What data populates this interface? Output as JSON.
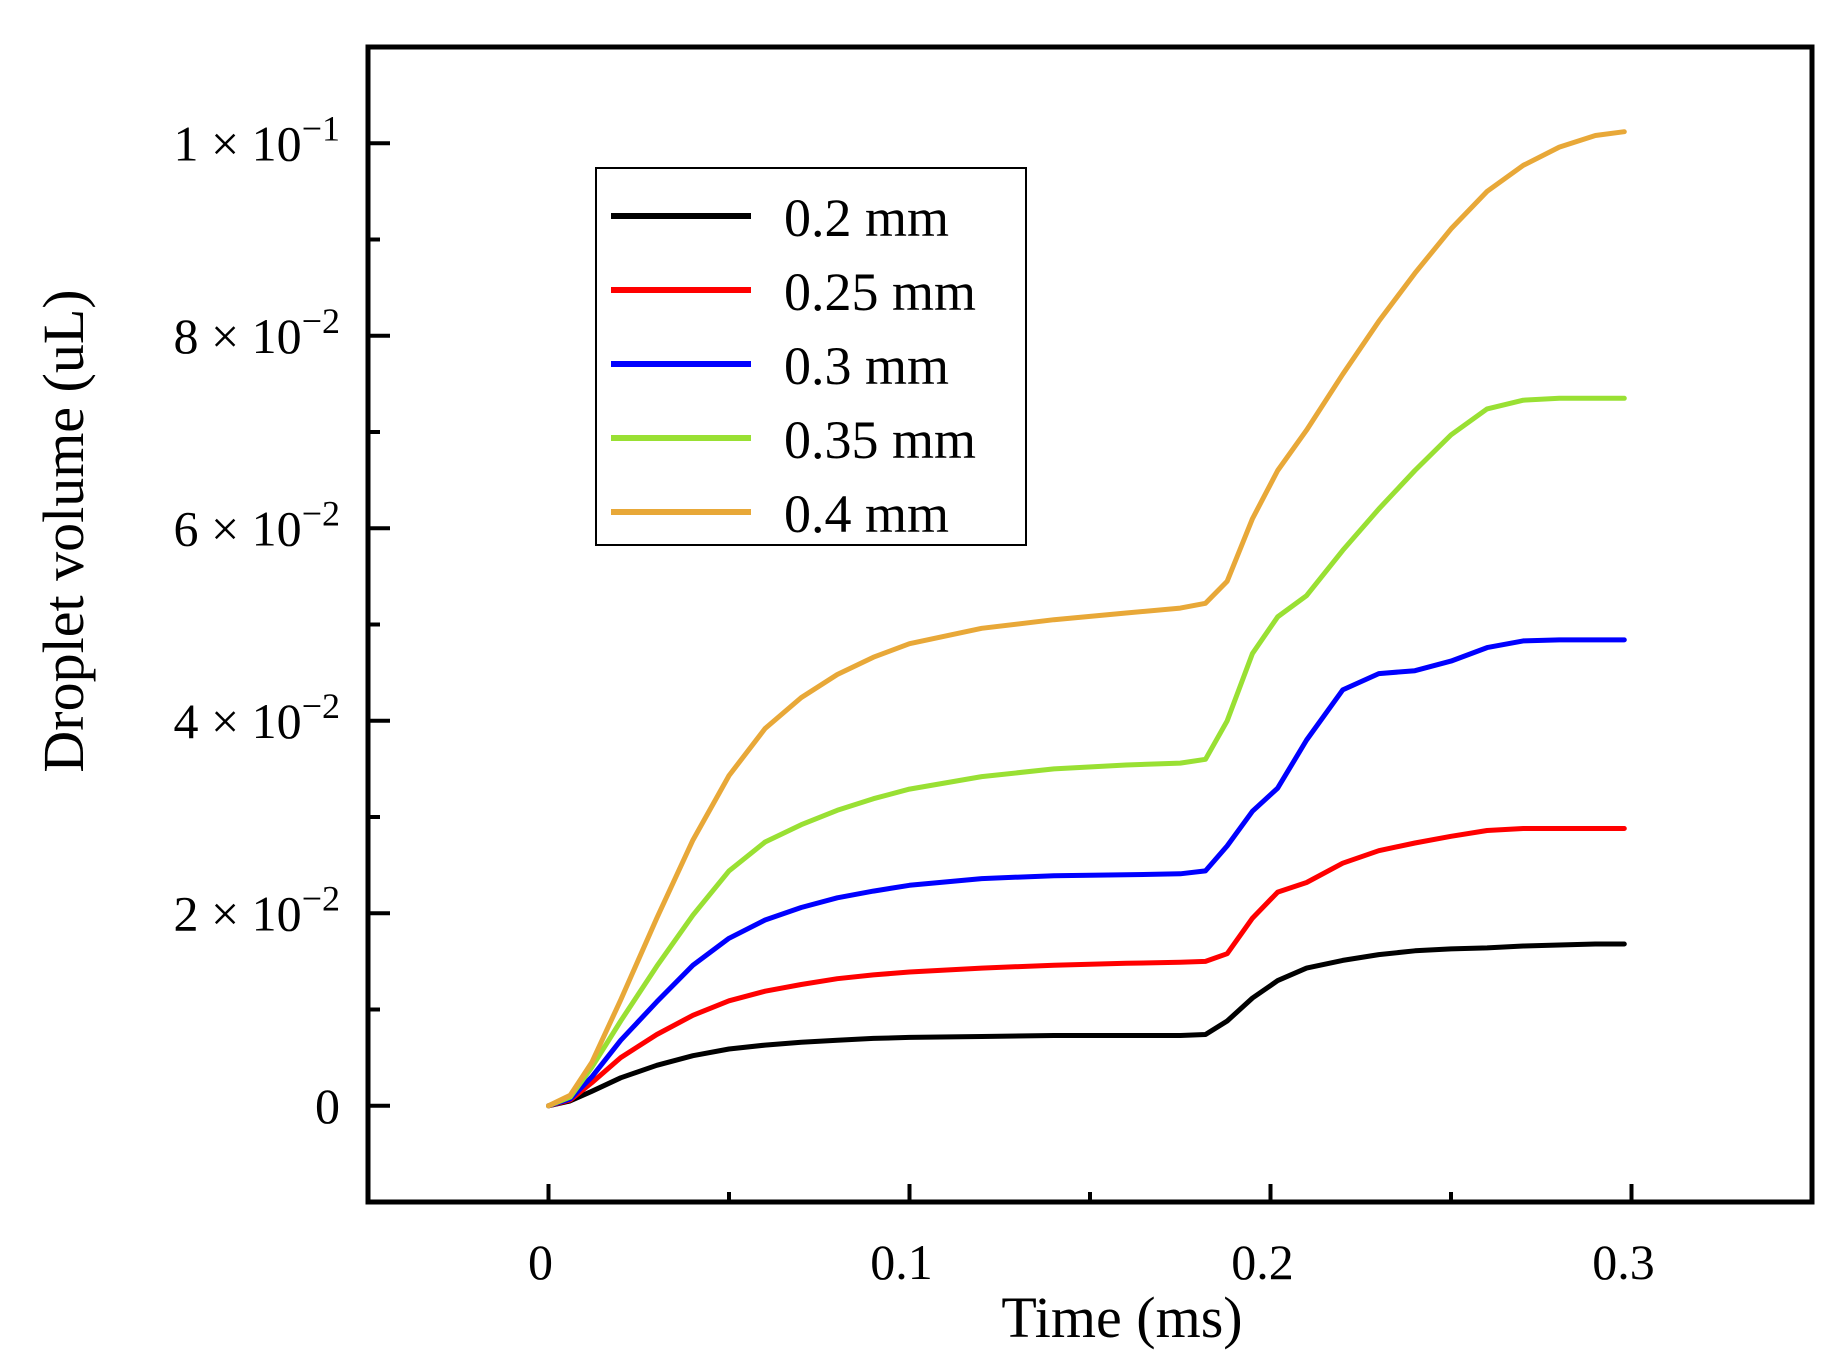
{
  "chart_data": {
    "type": "line",
    "title": "",
    "xlabel": "Time (ms)",
    "ylabel": "Droplet volume (uL)",
    "xlim": [
      -0.05,
      0.35
    ],
    "ylim": [
      -0.01,
      0.11
    ],
    "x_ticks": [
      {
        "value": 0,
        "label": "0"
      },
      {
        "value": 0.1,
        "label": "0.1"
      },
      {
        "value": 0.2,
        "label": "0.2"
      },
      {
        "value": 0.3,
        "label": "0.3"
      }
    ],
    "x_minor_ticks": [
      0.05,
      0.15,
      0.25
    ],
    "y_ticks": [
      {
        "value": 0,
        "mantissa": "0",
        "exponent": ""
      },
      {
        "value": 0.02,
        "mantissa": "2 × 10",
        "exponent": "−2"
      },
      {
        "value": 0.04,
        "mantissa": "4 × 10",
        "exponent": "−2"
      },
      {
        "value": 0.06,
        "mantissa": "6 × 10",
        "exponent": "−2"
      },
      {
        "value": 0.08,
        "mantissa": "8 × 10",
        "exponent": "−2"
      },
      {
        "value": 0.1,
        "mantissa": "1 × 10",
        "exponent": "−1"
      }
    ],
    "y_minor_ticks": [
      0.01,
      0.03,
      0.05,
      0.07,
      0.09
    ],
    "legend_position": "upper-left inside",
    "x": [
      0,
      0.006,
      0.012,
      0.02,
      0.03,
      0.04,
      0.05,
      0.06,
      0.07,
      0.08,
      0.09,
      0.1,
      0.12,
      0.14,
      0.16,
      0.175,
      0.182,
      0.188,
      0.195,
      0.202,
      0.21,
      0.22,
      0.23,
      0.24,
      0.25,
      0.26,
      0.27,
      0.28,
      0.29,
      0.298
    ],
    "series": [
      {
        "name": "0.2 mm",
        "color": "#000000",
        "values": [
          0,
          0.0005,
          0.0015,
          0.0029,
          0.0042,
          0.0052,
          0.0059,
          0.0063,
          0.0066,
          0.0068,
          0.007,
          0.0071,
          0.0072,
          0.0073,
          0.0073,
          0.0073,
          0.0074,
          0.0088,
          0.0112,
          0.013,
          0.0143,
          0.0151,
          0.0157,
          0.0161,
          0.0163,
          0.0164,
          0.0166,
          0.0167,
          0.0168,
          0.0168
        ]
      },
      {
        "name": "0.25 mm",
        "color": "#ff0000",
        "values": [
          0,
          0.0006,
          0.0024,
          0.005,
          0.0074,
          0.0094,
          0.0109,
          0.0119,
          0.0126,
          0.0132,
          0.0136,
          0.0139,
          0.0143,
          0.0146,
          0.0148,
          0.0149,
          0.015,
          0.0158,
          0.0195,
          0.0222,
          0.0232,
          0.0252,
          0.0265,
          0.0273,
          0.028,
          0.0286,
          0.0288,
          0.0288,
          0.0288,
          0.0288
        ]
      },
      {
        "name": "0.3 mm",
        "color": "#0000ff",
        "values": [
          0,
          0.0007,
          0.003,
          0.0068,
          0.0108,
          0.0146,
          0.0174,
          0.0193,
          0.0206,
          0.0216,
          0.0223,
          0.0229,
          0.0236,
          0.0239,
          0.024,
          0.0241,
          0.0244,
          0.027,
          0.0306,
          0.033,
          0.038,
          0.0432,
          0.0449,
          0.0452,
          0.0462,
          0.0476,
          0.0483,
          0.0484,
          0.0484,
          0.0484
        ]
      },
      {
        "name": "0.35 mm",
        "color": "#99e033",
        "values": [
          0,
          0.0009,
          0.004,
          0.0088,
          0.0145,
          0.0198,
          0.0244,
          0.0274,
          0.0292,
          0.0307,
          0.0319,
          0.0329,
          0.0342,
          0.035,
          0.0354,
          0.0356,
          0.036,
          0.04,
          0.047,
          0.0508,
          0.053,
          0.0577,
          0.062,
          0.066,
          0.0697,
          0.0724,
          0.0733,
          0.0735,
          0.0735,
          0.0735
        ]
      },
      {
        "name": "0.4 mm",
        "color": "#e8a838",
        "values": [
          0,
          0.0011,
          0.0045,
          0.011,
          0.0195,
          0.0276,
          0.0343,
          0.0392,
          0.0424,
          0.0448,
          0.0466,
          0.048,
          0.0496,
          0.0505,
          0.0512,
          0.0517,
          0.0522,
          0.0545,
          0.061,
          0.066,
          0.0702,
          0.076,
          0.0815,
          0.0865,
          0.0911,
          0.095,
          0.0977,
          0.0996,
          0.1008,
          0.1012
        ]
      }
    ]
  }
}
